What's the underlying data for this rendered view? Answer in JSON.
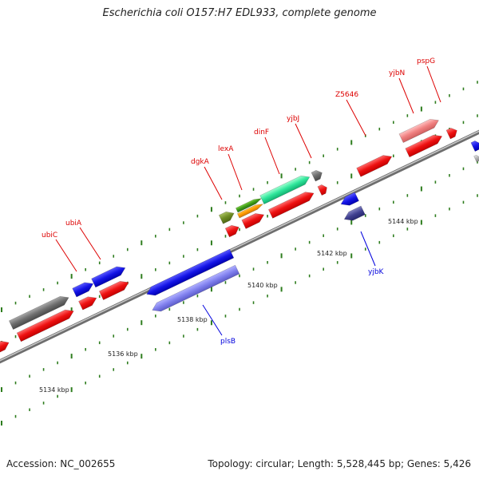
{
  "title": "Escherichia coli O157:H7 EDL933, complete genome",
  "footer": {
    "accession": "Accession: NC_002655",
    "summary": "Topology: circular; Length: 5,528,445 bp; Genes: 5,426"
  },
  "colors": {
    "backbone": "#8c8c8c",
    "forward_label": "#dd0000",
    "reverse_label": "#0000dd",
    "tick": "#2e7d1e"
  },
  "kbp_labels": [
    "5134 kbp",
    "5136 kbp",
    "5138 kbp",
    "5140 kbp",
    "5142 kbp",
    "5144 kbp"
  ],
  "labeled_genes": [
    {
      "name": "ubiC",
      "strand": "forward"
    },
    {
      "name": "ubiA",
      "strand": "forward"
    },
    {
      "name": "dgkA",
      "strand": "forward"
    },
    {
      "name": "lexA",
      "strand": "forward"
    },
    {
      "name": "dinF",
      "strand": "forward"
    },
    {
      "name": "yjbJ",
      "strand": "forward"
    },
    {
      "name": "Z5646",
      "strand": "forward"
    },
    {
      "name": "yjbN",
      "strand": "forward"
    },
    {
      "name": "pspG",
      "strand": "forward"
    },
    {
      "name": "plsB",
      "strand": "reverse"
    },
    {
      "name": "yjbK",
      "strand": "reverse"
    }
  ]
}
